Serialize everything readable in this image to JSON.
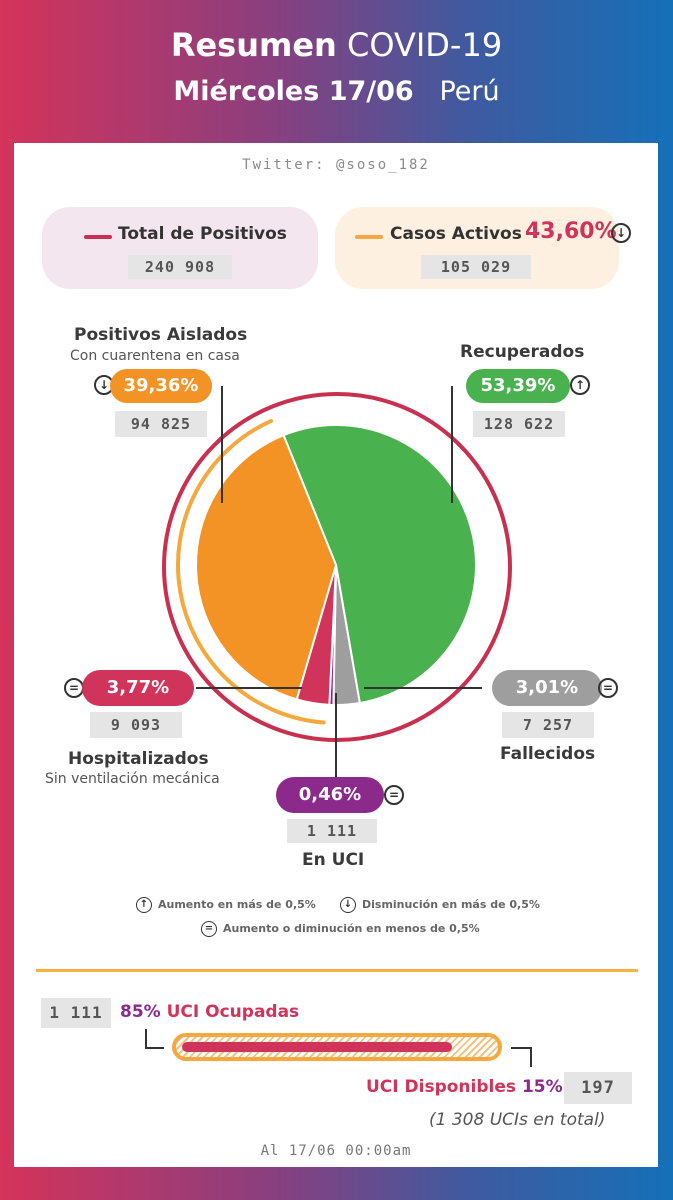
{
  "header": {
    "title_bold": "Resumen",
    "title_rest": "COVID-19",
    "date": "Miércoles 17/06",
    "country": "Perú"
  },
  "twitter": "Twitter: @soso_182",
  "summary": {
    "total": {
      "label": "Total de Positivos",
      "value": "240 908",
      "line_color": "#c8304f"
    },
    "active": {
      "label": "Casos Activos",
      "percent": "43,60%",
      "value": "105 029",
      "line_color": "#f3a93f",
      "trend": "down"
    }
  },
  "categories": {
    "aislados": {
      "title": "Positivos Aislados",
      "subtitle": "Con cuarentena en casa",
      "percent": "39,36%",
      "value": "94 825",
      "color": "#f39325",
      "trend": "down"
    },
    "recuperados": {
      "title": "Recuperados",
      "percent": "53,39%",
      "value": "128 622",
      "color": "#4ab14f",
      "trend": "up"
    },
    "hospitalizados": {
      "title": "Hospitalizados",
      "subtitle": "Sin ventilación mecánica",
      "percent": "3,77%",
      "value": "9 093",
      "color": "#d0345a",
      "trend": "equal"
    },
    "fallecidos": {
      "title": "Fallecidos",
      "percent": "3,01%",
      "value": "7 257",
      "color": "#9e9e9e",
      "trend": "equal"
    },
    "uci": {
      "title": "En UCI",
      "percent": "0,46%",
      "value": "1 111",
      "color": "#8b2a8b",
      "trend": "equal"
    }
  },
  "chart_data": {
    "type": "pie",
    "slices": [
      {
        "name": "Recuperados",
        "value": 53.39,
        "color": "#4ab14f"
      },
      {
        "name": "Fallecidos",
        "value": 3.01,
        "color": "#9e9e9e"
      },
      {
        "name": "En UCI",
        "value": 0.46,
        "color": "#8b2a8b"
      },
      {
        "name": "Hospitalizados",
        "value": 3.77,
        "color": "#d0345a"
      },
      {
        "name": "Positivos Aislados",
        "value": 39.36,
        "color": "#f39325"
      }
    ],
    "active_arc_percent": 43.6
  },
  "legend": {
    "up": "Aumento en más de 0,5%",
    "down": "Disminución en más de 0,5%",
    "equal": "Aumento o diminución en menos de 0,5%"
  },
  "icons": {
    "up": "↑",
    "down": "↓",
    "equal": "="
  },
  "uci_beds": {
    "occupied_value": "1 111",
    "occupied_percent": "85%",
    "occupied_label": "UCI Ocupadas",
    "available_label": "UCI Disponibles",
    "available_percent": "15%",
    "available_value": "197",
    "total_note": "(1 308 UCIs en total)",
    "occupied_fraction": 0.85
  },
  "timestamp": "Al 17/06 00:00am"
}
